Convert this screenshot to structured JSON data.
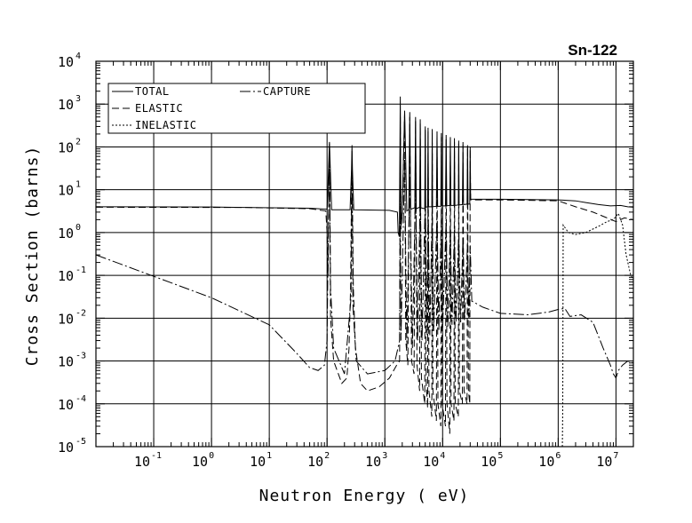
{
  "chart_data": {
    "type": "line",
    "title": "Sn-122",
    "xlabel": "Neutron Energy ( eV)",
    "ylabel": "Cross Section (barns)",
    "xscale": "log",
    "yscale": "log",
    "xlim": [
      0.01,
      20000000
    ],
    "ylim": [
      1e-05,
      10000
    ],
    "grid": true,
    "legend_position": "top-left",
    "x_tick_labels": [
      {
        "base": "10",
        "exp": "-1",
        "value": 0.1
      },
      {
        "base": "10",
        "exp": "0",
        "value": 1
      },
      {
        "base": "10",
        "exp": "1",
        "value": 10
      },
      {
        "base": "10",
        "exp": "2",
        "value": 100
      },
      {
        "base": "10",
        "exp": "3",
        "value": 1000
      },
      {
        "base": "10",
        "exp": "4",
        "value": 10000
      },
      {
        "base": "10",
        "exp": "5",
        "value": 100000
      },
      {
        "base": "10",
        "exp": "6",
        "value": 1000000
      },
      {
        "base": "10",
        "exp": "7",
        "value": 10000000
      }
    ],
    "y_tick_labels": [
      {
        "base": "10",
        "exp": "4",
        "value": 10000
      },
      {
        "base": "10",
        "exp": "3",
        "value": 1000
      },
      {
        "base": "10",
        "exp": "2",
        "value": 100
      },
      {
        "base": "10",
        "exp": "1",
        "value": 10
      },
      {
        "base": "10",
        "exp": "0",
        "value": 1
      },
      {
        "base": "10",
        "exp": "-1",
        "value": 0.1
      },
      {
        "base": "10",
        "exp": "-2",
        "value": 0.01
      },
      {
        "base": "10",
        "exp": "-3",
        "value": 0.001
      },
      {
        "base": "10",
        "exp": "-4",
        "value": 0.0001
      },
      {
        "base": "10",
        "exp": "-5",
        "value": 1e-05
      }
    ],
    "series": [
      {
        "name": "TOTAL",
        "dash": "none",
        "legend_slot": 0,
        "points": [
          [
            0.01,
            4.0
          ],
          [
            1,
            3.95
          ],
          [
            50,
            3.7
          ],
          [
            100,
            3.5
          ],
          [
            105,
            20
          ],
          [
            110,
            130
          ],
          [
            115,
            20
          ],
          [
            120,
            3.4
          ],
          [
            250,
            3.4
          ],
          [
            265,
            30
          ],
          [
            270,
            110
          ],
          [
            275,
            30
          ],
          [
            290,
            3.4
          ],
          [
            1200,
            3.3
          ],
          [
            1650,
            3.0
          ],
          [
            1700,
            1.0
          ],
          [
            1780,
            0.8
          ],
          [
            1850,
            1500
          ],
          [
            1900,
            1.5
          ],
          [
            2000,
            3.0
          ],
          [
            2200,
            700
          ],
          [
            2400,
            3.2
          ],
          [
            2600,
            3.4
          ],
          [
            2700,
            650
          ],
          [
            2800,
            3.5
          ],
          [
            3300,
            3.8
          ],
          [
            3400,
            500
          ],
          [
            3500,
            3.6
          ],
          [
            4000,
            3.9
          ],
          [
            4100,
            440
          ],
          [
            4200,
            3.8
          ],
          [
            4900,
            3.6
          ],
          [
            5000,
            300
          ],
          [
            5100,
            3.9
          ],
          [
            5500,
            4.0
          ],
          [
            5600,
            280
          ],
          [
            5700,
            4.0
          ],
          [
            6500,
            4.0
          ],
          [
            6600,
            260
          ],
          [
            6700,
            4.0
          ],
          [
            7800,
            4.1
          ],
          [
            8000,
            230
          ],
          [
            8200,
            4.1
          ],
          [
            9300,
            4.1
          ],
          [
            9500,
            210
          ],
          [
            9700,
            4.2
          ],
          [
            11200,
            4.2
          ],
          [
            11500,
            190
          ],
          [
            11800,
            4.2
          ],
          [
            13300,
            4.3
          ],
          [
            13600,
            170
          ],
          [
            13900,
            4.3
          ],
          [
            15700,
            4.3
          ],
          [
            16000,
            160
          ],
          [
            16300,
            4.3
          ],
          [
            18700,
            4.4
          ],
          [
            19000,
            140
          ],
          [
            19300,
            4.4
          ],
          [
            22000,
            4.5
          ],
          [
            22500,
            130
          ],
          [
            23000,
            4.5
          ],
          [
            26500,
            4.6
          ],
          [
            27000,
            110
          ],
          [
            27500,
            4.6
          ],
          [
            29500,
            4.6
          ],
          [
            30000,
            100
          ],
          [
            30500,
            6.0
          ],
          [
            100000,
            6.0
          ],
          [
            1000000,
            5.8
          ],
          [
            2000000,
            5.5
          ],
          [
            3000000,
            5.0
          ],
          [
            5000000,
            4.5
          ],
          [
            8000000,
            4.2
          ],
          [
            12000000,
            4.3
          ],
          [
            16000000,
            4.0
          ],
          [
            20000000,
            3.9
          ]
        ]
      },
      {
        "name": "ELASTIC",
        "dash": "8 4",
        "legend_slot": 1,
        "points": [
          [
            0.01,
            3.9
          ],
          [
            4,
            3.85
          ],
          [
            50,
            3.6
          ],
          [
            95,
            3.2
          ],
          [
            100,
            1.0
          ],
          [
            104,
            0.1
          ],
          [
            108,
            20
          ],
          [
            110,
            100
          ],
          [
            112,
            2
          ],
          [
            115,
            0.01
          ],
          [
            130,
            0.001
          ],
          [
            180,
            0.0003
          ],
          [
            220,
            0.0004
          ],
          [
            240,
            0.002
          ],
          [
            255,
            0.05
          ],
          [
            265,
            10
          ],
          [
            270,
            80
          ],
          [
            275,
            5
          ],
          [
            285,
            0.05
          ],
          [
            310,
            0.002
          ],
          [
            380,
            0.0003
          ],
          [
            500,
            0.0002
          ],
          [
            800,
            0.00025
          ],
          [
            1200,
            0.0004
          ],
          [
            1600,
            0.0008
          ],
          [
            1800,
            0.001
          ],
          [
            1850,
            500
          ],
          [
            1900,
            1.2
          ],
          [
            2000,
            2.8
          ],
          [
            2200,
            600
          ],
          [
            2300,
            0.003
          ],
          [
            2500,
            0.0008
          ],
          [
            2700,
            500
          ],
          [
            2900,
            0.001
          ],
          [
            3200,
            0.0005
          ],
          [
            3400,
            400
          ],
          [
            3600,
            0.0008
          ],
          [
            4000,
            0.0002
          ],
          [
            4100,
            350
          ],
          [
            4300,
            0.0004
          ],
          [
            4900,
            0.0001
          ],
          [
            5000,
            250
          ],
          [
            5200,
            0.0003
          ],
          [
            5500,
            8e-05
          ],
          [
            5600,
            230
          ],
          [
            5800,
            0.0002
          ],
          [
            6500,
            5e-05
          ],
          [
            6600,
            210
          ],
          [
            6800,
            0.0002
          ],
          [
            7800,
            4e-05
          ],
          [
            8000,
            190
          ],
          [
            8300,
            0.0001
          ],
          [
            9300,
            3e-05
          ],
          [
            9500,
            170
          ],
          [
            9800,
            0.0001
          ],
          [
            11200,
            3e-05
          ],
          [
            11500,
            150
          ],
          [
            11900,
            0.0001
          ],
          [
            13300,
            2e-05
          ],
          [
            13600,
            140
          ],
          [
            14000,
            0.0001
          ],
          [
            15700,
            4e-05
          ],
          [
            16000,
            130
          ],
          [
            16500,
            0.0001
          ],
          [
            18700,
            5e-05
          ],
          [
            19000,
            120
          ],
          [
            19500,
            0.0002
          ],
          [
            22000,
            0.0001
          ],
          [
            22500,
            110
          ],
          [
            23500,
            0.0002
          ],
          [
            26500,
            0.0001
          ],
          [
            27000,
            100
          ],
          [
            28000,
            0.0002
          ],
          [
            29500,
            0.0001
          ],
          [
            30000,
            90
          ],
          [
            30500,
            5.8
          ],
          [
            100000,
            5.8
          ],
          [
            1000000,
            5.5
          ],
          [
            2000000,
            4.0
          ],
          [
            4000000,
            3.0
          ],
          [
            7000000,
            2.2
          ],
          [
            10000000,
            1.8
          ],
          [
            14000000,
            2.2
          ],
          [
            20000000,
            2.0
          ]
        ]
      },
      {
        "name": "INELASTIC",
        "dash": "2 2",
        "legend_slot": 2,
        "points": [
          [
            1180000,
            1e-05
          ],
          [
            1200000,
            0.0001
          ],
          [
            1220000,
            1.5
          ],
          [
            1500000,
            1.0
          ],
          [
            2000000,
            0.9
          ],
          [
            3000000,
            1.0
          ],
          [
            5000000,
            1.4
          ],
          [
            7000000,
            1.8
          ],
          [
            9000000,
            2.0
          ],
          [
            11000000,
            2.8
          ],
          [
            13000000,
            1.5
          ],
          [
            15000000,
            0.3
          ],
          [
            18000000,
            0.1
          ],
          [
            20000000,
            0.08
          ]
        ]
      },
      {
        "name": "CAPTURE",
        "dash": "12 3 2 3",
        "legend_slot": 3,
        "points": [
          [
            0.01,
            0.3
          ],
          [
            0.1,
            0.095
          ],
          [
            1,
            0.03
          ],
          [
            10,
            0.007
          ],
          [
            30,
            0.0015
          ],
          [
            50,
            0.0007
          ],
          [
            70,
            0.0006
          ],
          [
            90,
            0.0008
          ],
          [
            100,
            0.003
          ],
          [
            105,
            1
          ],
          [
            110,
            120
          ],
          [
            115,
            0.05
          ],
          [
            130,
            0.002
          ],
          [
            200,
            0.0005
          ],
          [
            260,
            0.03
          ],
          [
            270,
            60
          ],
          [
            280,
            0.02
          ],
          [
            320,
            0.001
          ],
          [
            500,
            0.0005
          ],
          [
            1000,
            0.0006
          ],
          [
            1500,
            0.001
          ],
          [
            1800,
            0.003
          ],
          [
            1850,
            30
          ],
          [
            1900,
            0.003
          ],
          [
            2200,
            50
          ],
          [
            2400,
            0.002
          ],
          [
            2700,
            20
          ],
          [
            3000,
            0.002
          ],
          [
            3400,
            15
          ],
          [
            3700,
            0.003
          ],
          [
            4100,
            10
          ],
          [
            4400,
            0.003
          ],
          [
            5000,
            6
          ],
          [
            5400,
            0.004
          ],
          [
            5600,
            5
          ],
          [
            6000,
            0.004
          ],
          [
            6600,
            4
          ],
          [
            7000,
            0.005
          ],
          [
            8000,
            3
          ],
          [
            8600,
            0.005
          ],
          [
            9500,
            2.5
          ],
          [
            10000,
            0.006
          ],
          [
            11500,
            2
          ],
          [
            12300,
            0.006
          ],
          [
            13600,
            1.5
          ],
          [
            14500,
            0.007
          ],
          [
            16000,
            1.2
          ],
          [
            17000,
            0.008
          ],
          [
            19000,
            1
          ],
          [
            20500,
            0.008
          ],
          [
            22500,
            0.8
          ],
          [
            24000,
            0.009
          ],
          [
            27000,
            0.6
          ],
          [
            28500,
            0.01
          ],
          [
            30000,
            0.5
          ],
          [
            32000,
            0.025
          ],
          [
            50000,
            0.018
          ],
          [
            100000,
            0.013
          ],
          [
            300000,
            0.012
          ],
          [
            700000,
            0.014
          ],
          [
            1000000,
            0.016
          ],
          [
            1300000,
            0.017
          ],
          [
            1600000,
            0.011
          ],
          [
            2500000,
            0.012
          ],
          [
            4000000,
            0.008
          ],
          [
            6000000,
            0.002
          ],
          [
            8000000,
            0.0008
          ],
          [
            9000000,
            0.0005
          ],
          [
            10000000,
            0.0004
          ],
          [
            11000000,
            0.0006
          ],
          [
            13000000,
            0.0008
          ],
          [
            16000000,
            0.001
          ],
          [
            20000000,
            0.0009
          ]
        ]
      }
    ]
  }
}
